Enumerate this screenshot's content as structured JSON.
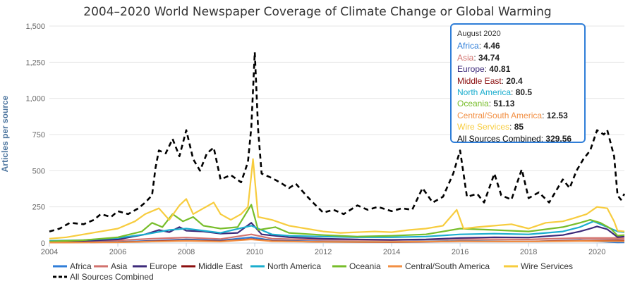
{
  "chart_data": {
    "type": "line",
    "title": "2004–2020 World Newspaper Coverage of Climate Change or Global Warming",
    "ylabel": "Articles per source",
    "xlabel": "",
    "xlim": [
      2004,
      2020.8
    ],
    "ylim": [
      0,
      1500
    ],
    "y_ticks": [
      0,
      250,
      500,
      750,
      1000,
      1250,
      1500
    ],
    "y_tick_labels": [
      "0",
      "250",
      "500",
      "750",
      "1,000",
      "1,250",
      "1,500"
    ],
    "x_ticks": [
      2004,
      2006,
      2008,
      2010,
      2012,
      2014,
      2016,
      2018,
      2020
    ],
    "x_tick_labels": [
      "2004",
      "2006",
      "2008",
      "2010",
      "2012",
      "2014",
      "2016",
      "2018",
      "2020"
    ],
    "grid": true,
    "legend_position": "bottom",
    "series": [
      {
        "name": "Africa",
        "color": "#2f7ed8",
        "dashed": false,
        "points": [
          [
            2004,
            5
          ],
          [
            2006,
            8
          ],
          [
            2007,
            15
          ],
          [
            2008,
            25
          ],
          [
            2009,
            18
          ],
          [
            2009.9,
            40
          ],
          [
            2010.5,
            18
          ],
          [
            2012,
            10
          ],
          [
            2014,
            8
          ],
          [
            2016,
            15
          ],
          [
            2018,
            10
          ],
          [
            2019.5,
            20
          ],
          [
            2020.6,
            4.46
          ],
          [
            2020.8,
            5
          ]
        ]
      },
      {
        "name": "Asia",
        "color": "#d2726e",
        "dashed": false,
        "points": [
          [
            2004,
            12
          ],
          [
            2006,
            18
          ],
          [
            2007,
            30
          ],
          [
            2008,
            38
          ],
          [
            2009,
            28
          ],
          [
            2009.9,
            60
          ],
          [
            2010.5,
            30
          ],
          [
            2012,
            22
          ],
          [
            2014,
            20
          ],
          [
            2016,
            28
          ],
          [
            2018,
            25
          ],
          [
            2019.5,
            35
          ],
          [
            2020.6,
            34.74
          ],
          [
            2020.8,
            32
          ]
        ]
      },
      {
        "name": "Europe",
        "color": "#3d2a7a",
        "dashed": false,
        "points": [
          [
            2004,
            10
          ],
          [
            2005,
            15
          ],
          [
            2006,
            25
          ],
          [
            2006.8,
            60
          ],
          [
            2007.2,
            90
          ],
          [
            2007.5,
            75
          ],
          [
            2007.8,
            110
          ],
          [
            2008,
            85
          ],
          [
            2008.5,
            80
          ],
          [
            2009,
            65
          ],
          [
            2009.5,
            70
          ],
          [
            2009.9,
            140
          ],
          [
            2010.2,
            60
          ],
          [
            2011,
            40
          ],
          [
            2012,
            30
          ],
          [
            2013,
            25
          ],
          [
            2014,
            22
          ],
          [
            2015,
            25
          ],
          [
            2016,
            35
          ],
          [
            2017,
            40
          ],
          [
            2018,
            38
          ],
          [
            2019,
            55
          ],
          [
            2019.5,
            80
          ],
          [
            2019.8,
            100
          ],
          [
            2020,
            115
          ],
          [
            2020.3,
            95
          ],
          [
            2020.6,
            40.81
          ],
          [
            2020.8,
            45
          ]
        ]
      },
      {
        "name": "Middle East",
        "color": "#8b0e0e",
        "dashed": false,
        "points": [
          [
            2004,
            4
          ],
          [
            2006,
            6
          ],
          [
            2007,
            12
          ],
          [
            2008,
            18
          ],
          [
            2009,
            12
          ],
          [
            2009.9,
            28
          ],
          [
            2010.5,
            14
          ],
          [
            2012,
            8
          ],
          [
            2014,
            6
          ],
          [
            2016,
            12
          ],
          [
            2018,
            10
          ],
          [
            2019.5,
            18
          ],
          [
            2020.6,
            20.4
          ],
          [
            2020.8,
            18
          ]
        ]
      },
      {
        "name": "North America",
        "color": "#1aadce",
        "dashed": false,
        "points": [
          [
            2004,
            15
          ],
          [
            2005,
            20
          ],
          [
            2006,
            35
          ],
          [
            2006.8,
            60
          ],
          [
            2007.5,
            90
          ],
          [
            2008,
            100
          ],
          [
            2008.5,
            85
          ],
          [
            2009,
            70
          ],
          [
            2009.9,
            120
          ],
          [
            2010.5,
            60
          ],
          [
            2011,
            50
          ],
          [
            2012,
            45
          ],
          [
            2013,
            40
          ],
          [
            2014,
            40
          ],
          [
            2015,
            45
          ],
          [
            2016,
            60
          ],
          [
            2017,
            65
          ],
          [
            2018,
            60
          ],
          [
            2019,
            80
          ],
          [
            2019.5,
            110
          ],
          [
            2019.9,
            150
          ],
          [
            2020.2,
            120
          ],
          [
            2020.6,
            80.5
          ],
          [
            2020.8,
            75
          ]
        ]
      },
      {
        "name": "Oceania",
        "color": "#77bd2a",
        "dashed": false,
        "points": [
          [
            2004,
            10
          ],
          [
            2005,
            20
          ],
          [
            2006,
            40
          ],
          [
            2006.7,
            80
          ],
          [
            2007,
            140
          ],
          [
            2007.3,
            110
          ],
          [
            2007.6,
            200
          ],
          [
            2007.9,
            150
          ],
          [
            2008.2,
            180
          ],
          [
            2008.5,
            120
          ],
          [
            2009,
            100
          ],
          [
            2009.5,
            110
          ],
          [
            2009.9,
            265
          ],
          [
            2010.1,
            90
          ],
          [
            2010.6,
            110
          ],
          [
            2011,
            70
          ],
          [
            2012,
            55
          ],
          [
            2013,
            45
          ],
          [
            2014,
            50
          ],
          [
            2015,
            60
          ],
          [
            2016,
            100
          ],
          [
            2017,
            90
          ],
          [
            2018,
            80
          ],
          [
            2019,
            110
          ],
          [
            2019.5,
            140
          ],
          [
            2019.8,
            160
          ],
          [
            2020.1,
            140
          ],
          [
            2020.4,
            100
          ],
          [
            2020.6,
            51.13
          ],
          [
            2020.8,
            55
          ]
        ]
      },
      {
        "name": "Central/South America",
        "color": "#f28f43",
        "dashed": false,
        "points": [
          [
            2004,
            3
          ],
          [
            2006,
            5
          ],
          [
            2007,
            10
          ],
          [
            2008,
            15
          ],
          [
            2009,
            10
          ],
          [
            2009.9,
            25
          ],
          [
            2010.5,
            12
          ],
          [
            2012,
            8
          ],
          [
            2014,
            8
          ],
          [
            2016,
            12
          ],
          [
            2018,
            10
          ],
          [
            2019.5,
            14
          ],
          [
            2020.6,
            12.53
          ],
          [
            2020.8,
            12
          ]
        ]
      },
      {
        "name": "Wire Services",
        "color": "#f7cc3e",
        "dashed": false,
        "points": [
          [
            2004,
            30
          ],
          [
            2004.5,
            40
          ],
          [
            2005,
            60
          ],
          [
            2005.5,
            80
          ],
          [
            2006,
            100
          ],
          [
            2006.5,
            150
          ],
          [
            2006.8,
            200
          ],
          [
            2007.2,
            240
          ],
          [
            2007.5,
            160
          ],
          [
            2007.8,
            260
          ],
          [
            2008,
            305
          ],
          [
            2008.2,
            200
          ],
          [
            2008.5,
            240
          ],
          [
            2008.8,
            280
          ],
          [
            2009,
            200
          ],
          [
            2009.3,
            160
          ],
          [
            2009.6,
            200
          ],
          [
            2009.8,
            250
          ],
          [
            2009.95,
            580
          ],
          [
            2010.1,
            180
          ],
          [
            2010.5,
            160
          ],
          [
            2011,
            120
          ],
          [
            2011.5,
            100
          ],
          [
            2012,
            80
          ],
          [
            2012.5,
            70
          ],
          [
            2013,
            75
          ],
          [
            2013.5,
            80
          ],
          [
            2014,
            75
          ],
          [
            2014.5,
            90
          ],
          [
            2015,
            100
          ],
          [
            2015.5,
            120
          ],
          [
            2015.9,
            230
          ],
          [
            2016.1,
            100
          ],
          [
            2016.5,
            110
          ],
          [
            2017,
            120
          ],
          [
            2017.5,
            130
          ],
          [
            2018,
            100
          ],
          [
            2018.5,
            140
          ],
          [
            2019,
            150
          ],
          [
            2019.3,
            170
          ],
          [
            2019.7,
            200
          ],
          [
            2020,
            250
          ],
          [
            2020.3,
            240
          ],
          [
            2020.5,
            150
          ],
          [
            2020.6,
            85
          ],
          [
            2020.8,
            80
          ]
        ]
      },
      {
        "name": "All Sources Combined",
        "color": "#000000",
        "dashed": true,
        "points": [
          [
            2004,
            80
          ],
          [
            2004.3,
            100
          ],
          [
            2004.6,
            140
          ],
          [
            2005,
            130
          ],
          [
            2005.3,
            160
          ],
          [
            2005.5,
            200
          ],
          [
            2005.8,
            180
          ],
          [
            2006,
            220
          ],
          [
            2006.3,
            200
          ],
          [
            2006.6,
            240
          ],
          [
            2006.8,
            280
          ],
          [
            2007,
            330
          ],
          [
            2007.1,
            520
          ],
          [
            2007.2,
            640
          ],
          [
            2007.4,
            620
          ],
          [
            2007.6,
            720
          ],
          [
            2007.8,
            600
          ],
          [
            2008,
            780
          ],
          [
            2008.2,
            580
          ],
          [
            2008.4,
            500
          ],
          [
            2008.6,
            620
          ],
          [
            2008.8,
            660
          ],
          [
            2009,
            440
          ],
          [
            2009.3,
            470
          ],
          [
            2009.6,
            420
          ],
          [
            2009.8,
            560
          ],
          [
            2009.9,
            800
          ],
          [
            2010,
            1320
          ],
          [
            2010.1,
            780
          ],
          [
            2010.2,
            480
          ],
          [
            2010.5,
            450
          ],
          [
            2010.8,
            410
          ],
          [
            2011,
            380
          ],
          [
            2011.2,
            410
          ],
          [
            2011.5,
            330
          ],
          [
            2011.7,
            280
          ],
          [
            2012,
            210
          ],
          [
            2012.3,
            230
          ],
          [
            2012.6,
            200
          ],
          [
            2013,
            260
          ],
          [
            2013.3,
            230
          ],
          [
            2013.6,
            250
          ],
          [
            2014,
            220
          ],
          [
            2014.3,
            240
          ],
          [
            2014.6,
            230
          ],
          [
            2014.9,
            380
          ],
          [
            2015.2,
            280
          ],
          [
            2015.5,
            320
          ],
          [
            2015.8,
            480
          ],
          [
            2016,
            640
          ],
          [
            2016.2,
            320
          ],
          [
            2016.5,
            340
          ],
          [
            2016.7,
            280
          ],
          [
            2017,
            480
          ],
          [
            2017.2,
            330
          ],
          [
            2017.5,
            300
          ],
          [
            2017.8,
            510
          ],
          [
            2018,
            310
          ],
          [
            2018.3,
            350
          ],
          [
            2018.6,
            280
          ],
          [
            2019,
            440
          ],
          [
            2019.2,
            380
          ],
          [
            2019.4,
            500
          ],
          [
            2019.6,
            580
          ],
          [
            2019.8,
            640
          ],
          [
            2020,
            780
          ],
          [
            2020.2,
            750
          ],
          [
            2020.3,
            780
          ],
          [
            2020.5,
            600
          ],
          [
            2020.6,
            329.56
          ],
          [
            2020.7,
            300
          ],
          [
            2020.8,
            340
          ]
        ]
      }
    ]
  },
  "tooltip": {
    "title": "August 2020",
    "rows": [
      {
        "label": "Africa",
        "value": "4.46",
        "color": "#2f7ed8"
      },
      {
        "label": "Asia",
        "value": "34.74",
        "color": "#d2726e"
      },
      {
        "label": "Europe",
        "value": "40.81",
        "color": "#3d2a7a"
      },
      {
        "label": "Middle East",
        "value": "20.4",
        "color": "#8b0e0e"
      },
      {
        "label": "North America",
        "value": "80.5",
        "color": "#1aadce"
      },
      {
        "label": "Oceania",
        "value": "51.13",
        "color": "#77bd2a"
      },
      {
        "label": "Central/South America",
        "value": "12.53",
        "color": "#f28f43"
      },
      {
        "label": "Wire Services",
        "value": "85",
        "color": "#f7cc3e"
      },
      {
        "label": "All Sources Combined",
        "value": "329.56",
        "color": "#000000"
      }
    ]
  }
}
